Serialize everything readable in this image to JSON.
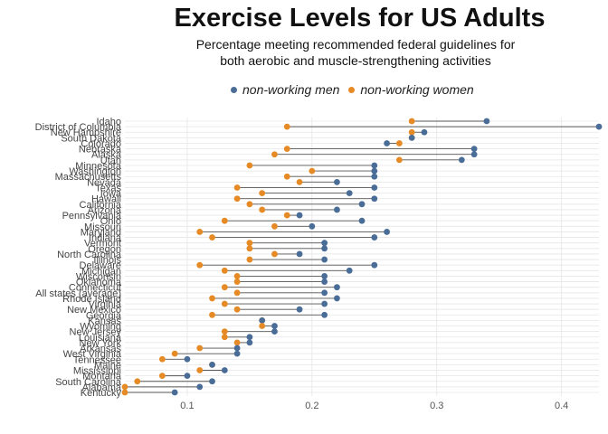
{
  "chart_data": {
    "type": "dumbbell",
    "title": "Exercise Levels for US Adults",
    "subtitle_lines": [
      "Percentage meeting recommended federal guidelines for",
      "both aerobic and muscle-strengthening activities"
    ],
    "xlabel": "",
    "ylabel": "",
    "xlim": [
      0.05,
      0.43
    ],
    "x_ticks": [
      0.1,
      0.2,
      0.3,
      0.4
    ],
    "x_tick_labels": [
      "0.1",
      "0.2",
      "0.3",
      "0.4"
    ],
    "grid": true,
    "legend_position": "top",
    "series": [
      {
        "name": "non-working men",
        "color": "#4a6d97"
      },
      {
        "name": "non-working women",
        "color": "#e58a25"
      }
    ],
    "categories": [
      "Idaho",
      "District of Columbia",
      "New Hampshire",
      "South Dakota",
      "Colorado",
      "Nebraska",
      "Alaska",
      "Utah",
      "Minnesota",
      "Washington",
      "Massachusetts",
      "Nevada",
      "Texas",
      "Iowa",
      "Hawaii",
      "California",
      "Arizona",
      "Pennsylvania",
      "Ohio",
      "Missouri",
      "Maryland",
      "Indiana",
      "Vermont",
      "Oregon",
      "North Carolina",
      "Illinois",
      "Delaware",
      "Michigan",
      "Wisconsin",
      "Oklahoma",
      "Connecticut",
      "All states (average)",
      "Rhode Island",
      "Virginia",
      "New Mexico",
      "Georgia",
      "Kansas",
      "Wyoming",
      "New Jersey",
      "Louisiana",
      "New York",
      "Arkansas",
      "West Virginia",
      "Tennessee",
      "Maine",
      "Mississippi",
      "Montana",
      "South Carolina",
      "Alabama",
      "Kentucky"
    ],
    "men": [
      0.34,
      0.43,
      0.29,
      0.28,
      0.26,
      0.33,
      0.33,
      0.32,
      0.25,
      0.25,
      0.25,
      0.22,
      0.25,
      0.23,
      0.25,
      0.24,
      0.22,
      0.19,
      0.24,
      0.2,
      0.26,
      0.25,
      0.21,
      0.21,
      0.19,
      0.21,
      0.25,
      0.23,
      0.21,
      0.21,
      0.22,
      0.21,
      0.22,
      0.21,
      0.19,
      0.21,
      0.16,
      0.17,
      0.17,
      0.15,
      0.15,
      0.14,
      0.14,
      0.1,
      0.12,
      0.13,
      0.1,
      0.12,
      0.11,
      0.09
    ],
    "women": [
      0.28,
      0.18,
      0.28,
      0.28,
      0.27,
      0.18,
      0.17,
      0.27,
      0.15,
      0.2,
      0.18,
      0.19,
      0.14,
      0.16,
      0.14,
      0.15,
      0.16,
      0.18,
      0.13,
      0.17,
      0.11,
      0.12,
      0.15,
      0.15,
      0.17,
      0.15,
      0.11,
      0.13,
      0.14,
      0.14,
      0.13,
      0.14,
      0.12,
      0.13,
      0.14,
      0.12,
      0.16,
      0.16,
      0.13,
      0.13,
      0.14,
      0.11,
      0.09,
      0.08,
      0.12,
      0.11,
      0.08,
      0.06,
      0.05,
      0.05
    ]
  }
}
